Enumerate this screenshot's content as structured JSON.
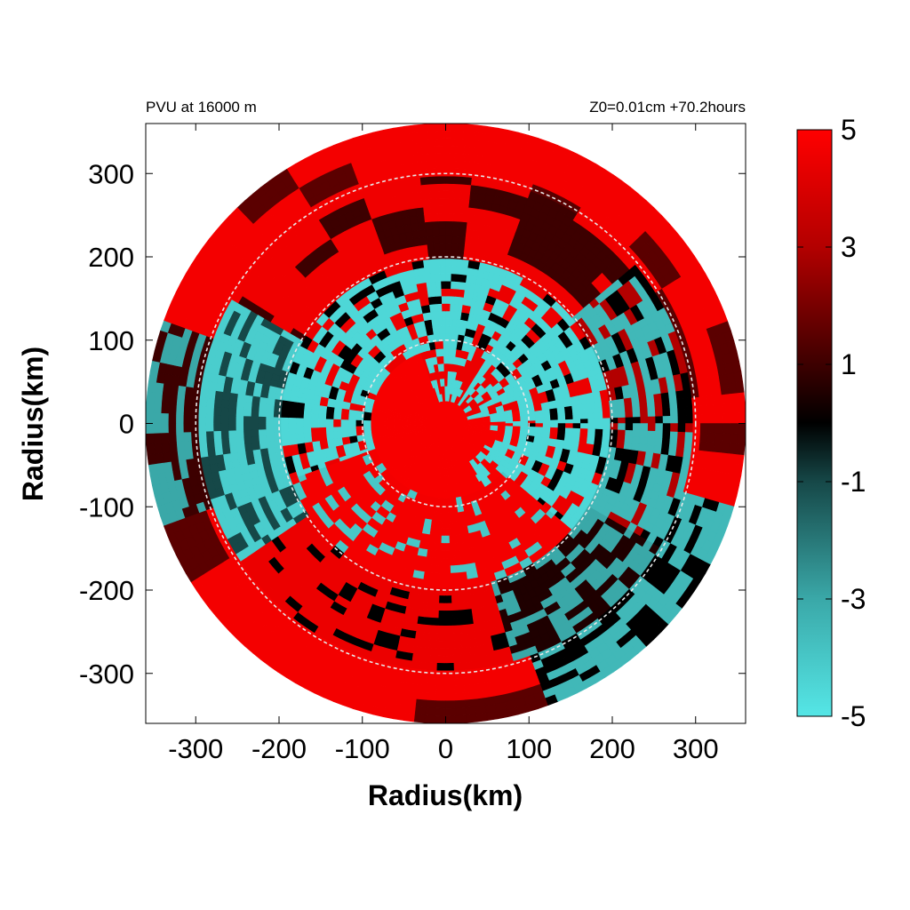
{
  "chart_data": {
    "type": "heatmap",
    "title_left": "PVU at 16000 m",
    "title_right": "Z0=0.01cm  +70.2hours",
    "xlabel": "Radius(km)",
    "ylabel": "Radius(km)",
    "xlim": [
      -360,
      360
    ],
    "ylim": [
      -360,
      360
    ],
    "domain_radius": 360,
    "x_ticks": [
      -300,
      -200,
      -100,
      0,
      100,
      200,
      300
    ],
    "y_ticks": [
      300,
      200,
      100,
      0,
      -100,
      -200,
      -300
    ],
    "reference_circles_km": [
      100,
      200,
      300
    ],
    "colorbar": {
      "range": [
        -5,
        5
      ],
      "tick_values": [
        5,
        3,
        1,
        -1,
        -3,
        -5
      ],
      "colormap": [
        {
          "value": -5,
          "color": "#55e6e6"
        },
        {
          "value": -3,
          "color": "#3aa8a8"
        },
        {
          "value": -1,
          "color": "#164848"
        },
        {
          "value": 0,
          "color": "#000000"
        },
        {
          "value": 1,
          "color": "#3d0000"
        },
        {
          "value": 3,
          "color": "#b30000"
        },
        {
          "value": 5,
          "color": "#ff0000"
        }
      ]
    }
  }
}
